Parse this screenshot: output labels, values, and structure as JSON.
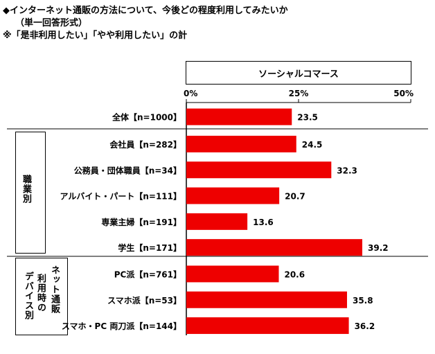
{
  "header": {
    "title": "◆インターネット通販の方法について、今後どの程度利用してみたいか",
    "subtitle": "（単一回答形式）",
    "note": "※「是非利用したい」「やや利用したい」の計"
  },
  "groups": {
    "job": [
      "職",
      "業",
      "別"
    ],
    "device_line1": [
      "ネ",
      "ッ",
      "ト",
      "通",
      "販"
    ],
    "device_line2": [
      "利",
      "用",
      "時",
      "の"
    ],
    "device_line3": [
      "デ",
      "バ",
      "イ",
      "ス",
      "別"
    ]
  },
  "colors": {
    "bar": "#ee0000",
    "axis": "#000000"
  },
  "chart_data": {
    "type": "bar",
    "orientation": "horizontal",
    "series_name": "ソーシャルコマース",
    "xlim": [
      0,
      50
    ],
    "ticks": [
      {
        "v": 0,
        "label": "0%"
      },
      {
        "v": 25,
        "label": "25%"
      },
      {
        "v": 50,
        "label": "50%"
      }
    ],
    "categories": [
      "全体【n=1000】",
      "会社員【n=282】",
      "公務員・団体職員【n=34】",
      "アルバイト・パート【n=111】",
      "専業主婦【n=191】",
      "学生【n=171】",
      "PC派【n=761】",
      "スマホ派【n=53】",
      "スマホ・PC 両刀派【n=144】"
    ],
    "values": [
      23.5,
      24.5,
      32.3,
      20.7,
      13.6,
      39.2,
      20.6,
      35.8,
      36.2
    ],
    "value_labels": [
      "23.5",
      "24.5",
      "32.3",
      "20.7",
      "13.6",
      "39.2",
      "20.6",
      "35.8",
      "36.2"
    ]
  }
}
